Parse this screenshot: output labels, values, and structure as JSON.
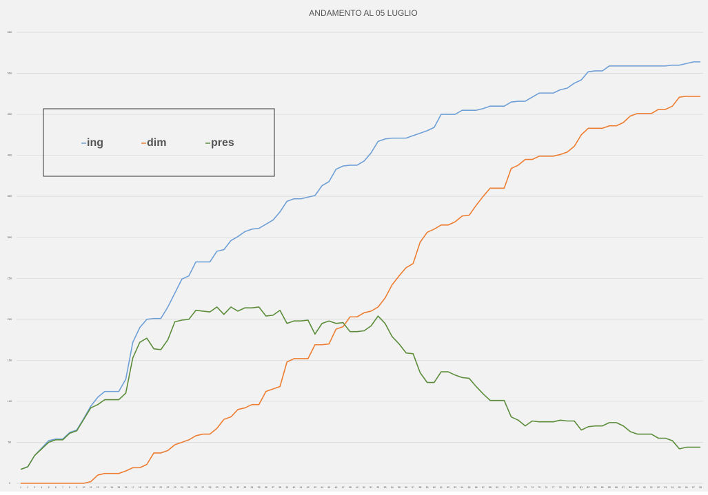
{
  "chart_data": {
    "type": "line",
    "title": "ANDAMENTO AL 05 LUGLIO",
    "categories": [
      1,
      2,
      3,
      4,
      5,
      6,
      7,
      8,
      9,
      10,
      11,
      12,
      13,
      14,
      15,
      16,
      17,
      18,
      19,
      20,
      21,
      22,
      23,
      24,
      25,
      26,
      27,
      28,
      29,
      30,
      31,
      32,
      33,
      34,
      35,
      36,
      37,
      38,
      39,
      40,
      41,
      42,
      43,
      44,
      45,
      46,
      47,
      48,
      49,
      50,
      51,
      52,
      53,
      54,
      55,
      56,
      57,
      58,
      59,
      60,
      61,
      62,
      63,
      64,
      65,
      66,
      67,
      68,
      69,
      70,
      71,
      72,
      73,
      74,
      75,
      76,
      77,
      78,
      79,
      80,
      81,
      82,
      83,
      84,
      85,
      86,
      87,
      88,
      89,
      90,
      91,
      92,
      93,
      94,
      95,
      96,
      97,
      98
    ],
    "series": [
      {
        "name": "ing",
        "color": "#6e9fd6",
        "values": [
          17,
          20,
          34,
          43,
          52,
          54,
          54,
          62,
          65,
          79,
          94,
          105,
          112,
          112,
          112,
          127,
          172,
          190,
          200,
          201,
          201,
          215,
          232,
          249,
          253,
          270,
          270,
          270,
          283,
          285,
          296,
          301,
          307,
          310,
          311,
          316,
          321,
          331,
          344,
          347,
          347,
          349,
          351,
          363,
          368,
          383,
          387,
          388,
          388,
          393,
          403,
          417,
          420,
          421,
          421,
          421,
          424,
          427,
          430,
          434,
          450,
          450,
          450,
          455,
          455,
          455,
          457,
          460,
          460,
          460,
          465,
          466,
          466,
          471,
          476,
          476,
          476,
          480,
          482,
          488,
          492,
          502,
          503,
          503,
          509,
          509,
          509,
          509,
          509,
          509,
          509,
          509,
          509,
          510,
          510,
          512,
          514,
          514
        ]
      },
      {
        "name": "dim",
        "color": "#ed7d31",
        "values": [
          0,
          0,
          0,
          0,
          0,
          0,
          0,
          0,
          0,
          0,
          2,
          10,
          12,
          12,
          12,
          15,
          19,
          19,
          23,
          37,
          37,
          40,
          47,
          50,
          53,
          58,
          60,
          60,
          67,
          78,
          81,
          90,
          92,
          96,
          96,
          112,
          115,
          118,
          148,
          152,
          152,
          152,
          169,
          169,
          170,
          188,
          191,
          203,
          203,
          208,
          210,
          215,
          226,
          242,
          253,
          263,
          268,
          294,
          306,
          310,
          315,
          315,
          319,
          326,
          327,
          339,
          350,
          360,
          360,
          360,
          384,
          388,
          395,
          395,
          399,
          399,
          399,
          401,
          404,
          411,
          425,
          433,
          433,
          433,
          436,
          436,
          440,
          448,
          451,
          451,
          451,
          456,
          456,
          460,
          471,
          472,
          472,
          472
        ]
      },
      {
        "name": "pres",
        "color": "#5b8c3a",
        "values": [
          17,
          20,
          34,
          42,
          50,
          53,
          53,
          61,
          64,
          78,
          92,
          96,
          102,
          102,
          102,
          110,
          153,
          172,
          177,
          164,
          163,
          175,
          197,
          199,
          200,
          211,
          210,
          209,
          215,
          206,
          215,
          210,
          214,
          214,
          215,
          204,
          205,
          211,
          195,
          198,
          198,
          199,
          182,
          195,
          198,
          195,
          196,
          185,
          185,
          186,
          192,
          204,
          195,
          179,
          170,
          159,
          158,
          135,
          123,
          123,
          136,
          136,
          132,
          129,
          128,
          118,
          109,
          101,
          101,
          101,
          81,
          77,
          70,
          76,
          75,
          75,
          75,
          77,
          76,
          76,
          65,
          69,
          70,
          70,
          74,
          74,
          70,
          63,
          60,
          60,
          60,
          55,
          55,
          52,
          42,
          44,
          44,
          44
        ]
      }
    ],
    "ylim": [
      0,
      550
    ],
    "yticks": [
      0,
      50,
      100,
      150,
      200,
      250,
      300,
      350,
      400,
      450,
      500,
      550
    ],
    "grid": true,
    "legend": "top-left"
  }
}
